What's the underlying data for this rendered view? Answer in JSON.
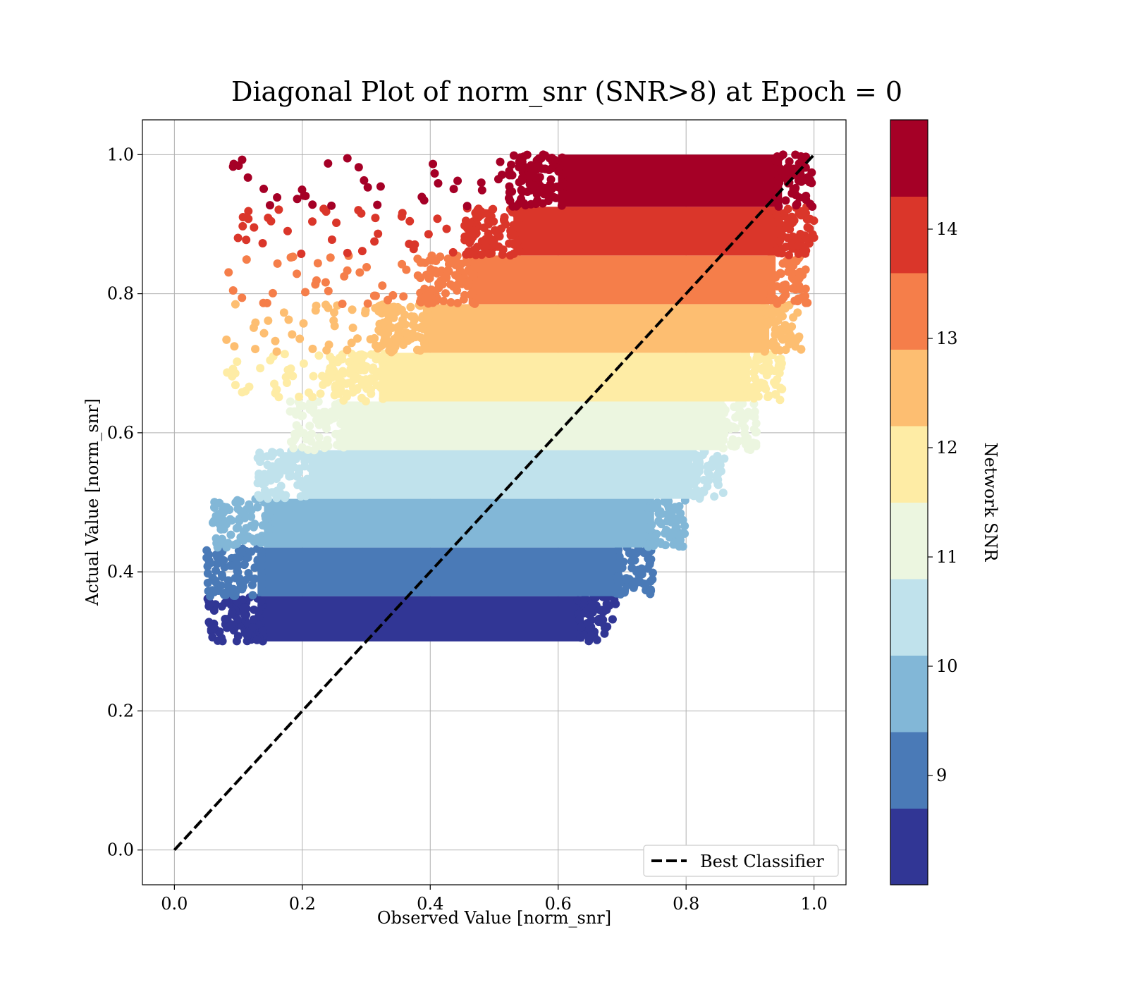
{
  "chart_data": {
    "type": "scatter",
    "title": "Diagonal Plot of norm_snr (SNR>8) at Epoch = 0",
    "xlabel": "Observed Value [norm_snr]",
    "ylabel": "Actual Value [norm_snr]",
    "xlim": [
      -0.05,
      1.05
    ],
    "ylim": [
      -0.05,
      1.05
    ],
    "xticks": [
      0.0,
      0.2,
      0.4,
      0.6,
      0.8,
      1.0
    ],
    "yticks": [
      0.0,
      0.2,
      0.4,
      0.6,
      0.8,
      1.0
    ],
    "xtick_labels": [
      "0.0",
      "0.2",
      "0.4",
      "0.6",
      "0.8",
      "1.0"
    ],
    "ytick_labels": [
      "0.0",
      "0.2",
      "0.4",
      "0.6",
      "0.8",
      "1.0"
    ],
    "grid": true,
    "legend": {
      "placement": "lower-right",
      "entries": [
        "Best Classifier"
      ]
    },
    "reference_line": {
      "name": "Best Classifier",
      "style": "dashed",
      "color": "#000000",
      "x": [
        0.0,
        1.0
      ],
      "y": [
        0.0,
        1.0
      ]
    },
    "colorbar": {
      "label": "Network SNR",
      "min": 8.0,
      "max": 15.0,
      "ticks": [
        9,
        10,
        11,
        12,
        13,
        14
      ],
      "tick_labels": [
        "9",
        "10",
        "11",
        "12",
        "13",
        "14"
      ],
      "bands": [
        {
          "from": 8.0,
          "to": 8.7,
          "color": "#313695"
        },
        {
          "from": 8.7,
          "to": 9.4,
          "color": "#4a7ab7"
        },
        {
          "from": 9.4,
          "to": 10.1,
          "color": "#82b7d7"
        },
        {
          "from": 10.1,
          "to": 10.8,
          "color": "#c0e2ec"
        },
        {
          "from": 10.8,
          "to": 11.5,
          "color": "#ecf6e0"
        },
        {
          "from": 11.5,
          "to": 12.2,
          "color": "#feeca5"
        },
        {
          "from": 12.2,
          "to": 12.9,
          "color": "#fdbe71"
        },
        {
          "from": 12.9,
          "to": 13.6,
          "color": "#f57e4a"
        },
        {
          "from": 13.6,
          "to": 14.3,
          "color": "#da362a"
        },
        {
          "from": 14.3,
          "to": 15.0,
          "color": "#a50026"
        }
      ]
    },
    "scatter_bands": [
      {
        "y_range": [
          0.3,
          0.365
        ],
        "x_range": [
          0.07,
          0.66
        ],
        "color": "#313695"
      },
      {
        "y_range": [
          0.365,
          0.435
        ],
        "x_range": [
          0.07,
          0.72
        ],
        "color": "#4a7ab7"
      },
      {
        "y_range": [
          0.435,
          0.505
        ],
        "x_range": [
          0.08,
          0.77
        ],
        "color": "#82b7d7"
      },
      {
        "y_range": [
          0.505,
          0.575
        ],
        "x_range": [
          0.15,
          0.83
        ],
        "color": "#c0e2ec"
      },
      {
        "y_range": [
          0.575,
          0.645
        ],
        "x_range": [
          0.2,
          0.88
        ],
        "color": "#ecf6e0"
      },
      {
        "y_range": [
          0.645,
          0.715
        ],
        "x_range": [
          0.26,
          0.92
        ],
        "color": "#feeca5"
      },
      {
        "y_range": [
          0.715,
          0.785
        ],
        "x_range": [
          0.33,
          0.95
        ],
        "color": "#fdbe71"
      },
      {
        "y_range": [
          0.785,
          0.855
        ],
        "x_range": [
          0.4,
          0.96
        ],
        "color": "#f57e4a"
      },
      {
        "y_range": [
          0.855,
          0.925
        ],
        "x_range": [
          0.47,
          0.97
        ],
        "color": "#da362a"
      },
      {
        "y_range": [
          0.925,
          1.0
        ],
        "x_range": [
          0.54,
          0.97
        ],
        "color": "#a50026"
      }
    ]
  }
}
